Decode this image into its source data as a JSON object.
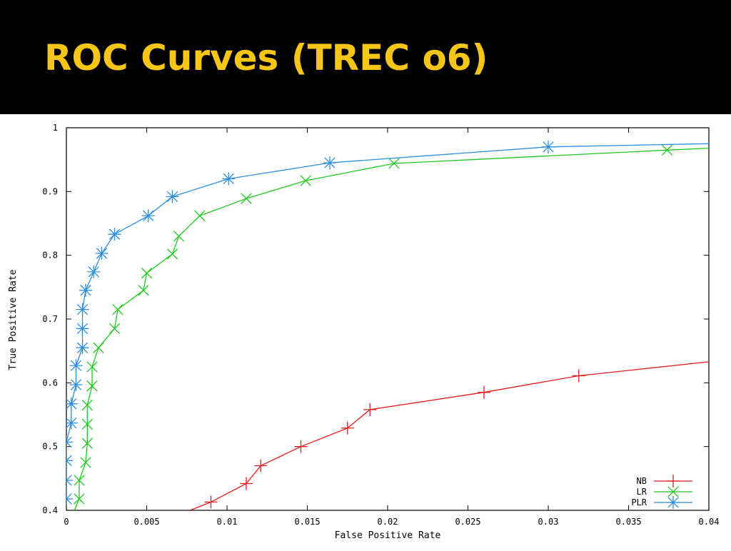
{
  "slide": {
    "title": "ROC Curves (TREC o6)",
    "title_color": "#f5c518",
    "header_bg": "#000000"
  },
  "chart_data": {
    "type": "line",
    "title": "",
    "xlabel": "False Positive Rate",
    "ylabel": "True Positive Rate",
    "xlim": [
      0,
      0.04
    ],
    "ylim": [
      0.4,
      1
    ],
    "xticks": [
      0,
      0.005,
      0.01,
      0.015,
      0.02,
      0.025,
      0.03,
      0.035,
      0.04
    ],
    "xtick_labels": [
      "0",
      "0.005",
      "0.01",
      "0.015",
      "0.02",
      "0.025",
      "0.03",
      "0.035",
      "0.04"
    ],
    "yticks": [
      0.4,
      0.5,
      0.6,
      0.7,
      0.8,
      0.9,
      1
    ],
    "ytick_labels": [
      "0.4",
      "0.5",
      "0.6",
      "0.7",
      "0.8",
      "0.9",
      "1"
    ],
    "grid": false,
    "legend_position": "bottom-right",
    "series": [
      {
        "name": "NB",
        "color": "#e41a1c",
        "marker": "plus",
        "points": [
          [
            0.0077,
            0.4
          ],
          [
            0.009,
            0.413
          ],
          [
            0.0112,
            0.442
          ],
          [
            0.0121,
            0.47
          ],
          [
            0.0146,
            0.5
          ],
          [
            0.0175,
            0.529
          ],
          [
            0.0189,
            0.558
          ],
          [
            0.026,
            0.585
          ],
          [
            0.0319,
            0.611
          ],
          [
            0.04,
            0.633
          ]
        ],
        "markers": [
          [
            0.009,
            0.413
          ],
          [
            0.0112,
            0.442
          ],
          [
            0.0121,
            0.47
          ],
          [
            0.0146,
            0.5
          ],
          [
            0.0175,
            0.529
          ],
          [
            0.0189,
            0.558
          ],
          [
            0.026,
            0.585
          ],
          [
            0.0319,
            0.611
          ]
        ]
      },
      {
        "name": "LR",
        "color": "#1ec81e",
        "marker": "x",
        "points": [
          [
            0.0005,
            0.4
          ],
          [
            0.0008,
            0.418
          ],
          [
            0.0008,
            0.447
          ],
          [
            0.0012,
            0.475
          ],
          [
            0.0013,
            0.505
          ],
          [
            0.0013,
            0.535
          ],
          [
            0.0013,
            0.565
          ],
          [
            0.0016,
            0.595
          ],
          [
            0.0016,
            0.625
          ],
          [
            0.002,
            0.655
          ],
          [
            0.003,
            0.685
          ],
          [
            0.0032,
            0.715
          ],
          [
            0.0048,
            0.745
          ],
          [
            0.005,
            0.772
          ],
          [
            0.0066,
            0.802
          ],
          [
            0.007,
            0.83
          ],
          [
            0.0083,
            0.862
          ],
          [
            0.0112,
            0.889
          ],
          [
            0.0149,
            0.917
          ],
          [
            0.0204,
            0.944
          ],
          [
            0.0374,
            0.965
          ],
          [
            0.04,
            0.968
          ]
        ],
        "markers": [
          [
            0.0008,
            0.418
          ],
          [
            0.0008,
            0.447
          ],
          [
            0.0012,
            0.475
          ],
          [
            0.0013,
            0.505
          ],
          [
            0.0013,
            0.535
          ],
          [
            0.0013,
            0.565
          ],
          [
            0.0016,
            0.595
          ],
          [
            0.0016,
            0.625
          ],
          [
            0.002,
            0.655
          ],
          [
            0.003,
            0.685
          ],
          [
            0.0032,
            0.715
          ],
          [
            0.0048,
            0.745
          ],
          [
            0.005,
            0.772
          ],
          [
            0.0066,
            0.802
          ],
          [
            0.007,
            0.83
          ],
          [
            0.0083,
            0.862
          ],
          [
            0.0112,
            0.889
          ],
          [
            0.0149,
            0.917
          ],
          [
            0.0204,
            0.944
          ],
          [
            0.0374,
            0.965
          ]
        ]
      },
      {
        "name": "PLR",
        "color": "#2c8fe0",
        "marker": "star",
        "points": [
          [
            0.0,
            0.418
          ],
          [
            0.0,
            0.447
          ],
          [
            0.0,
            0.478
          ],
          [
            0.0,
            0.507
          ],
          [
            0.0003,
            0.537
          ],
          [
            0.0003,
            0.567
          ],
          [
            0.0006,
            0.597
          ],
          [
            0.0006,
            0.627
          ],
          [
            0.001,
            0.655
          ],
          [
            0.001,
            0.685
          ],
          [
            0.001,
            0.715
          ],
          [
            0.0012,
            0.745
          ],
          [
            0.0017,
            0.774
          ],
          [
            0.0022,
            0.803
          ],
          [
            0.003,
            0.833
          ],
          [
            0.0051,
            0.862
          ],
          [
            0.0066,
            0.892
          ],
          [
            0.0101,
            0.92
          ],
          [
            0.0164,
            0.945
          ],
          [
            0.03,
            0.97
          ],
          [
            0.04,
            0.975
          ]
        ],
        "markers": [
          [
            0.0,
            0.418
          ],
          [
            0.0,
            0.447
          ],
          [
            0.0,
            0.478
          ],
          [
            0.0,
            0.507
          ],
          [
            0.0003,
            0.537
          ],
          [
            0.0003,
            0.567
          ],
          [
            0.0006,
            0.597
          ],
          [
            0.0006,
            0.627
          ],
          [
            0.001,
            0.655
          ],
          [
            0.001,
            0.685
          ],
          [
            0.001,
            0.715
          ],
          [
            0.0012,
            0.745
          ],
          [
            0.0017,
            0.774
          ],
          [
            0.0022,
            0.803
          ],
          [
            0.003,
            0.833
          ],
          [
            0.0051,
            0.862
          ],
          [
            0.0066,
            0.892
          ],
          [
            0.0101,
            0.92
          ],
          [
            0.0164,
            0.945
          ],
          [
            0.03,
            0.97
          ]
        ]
      }
    ]
  }
}
